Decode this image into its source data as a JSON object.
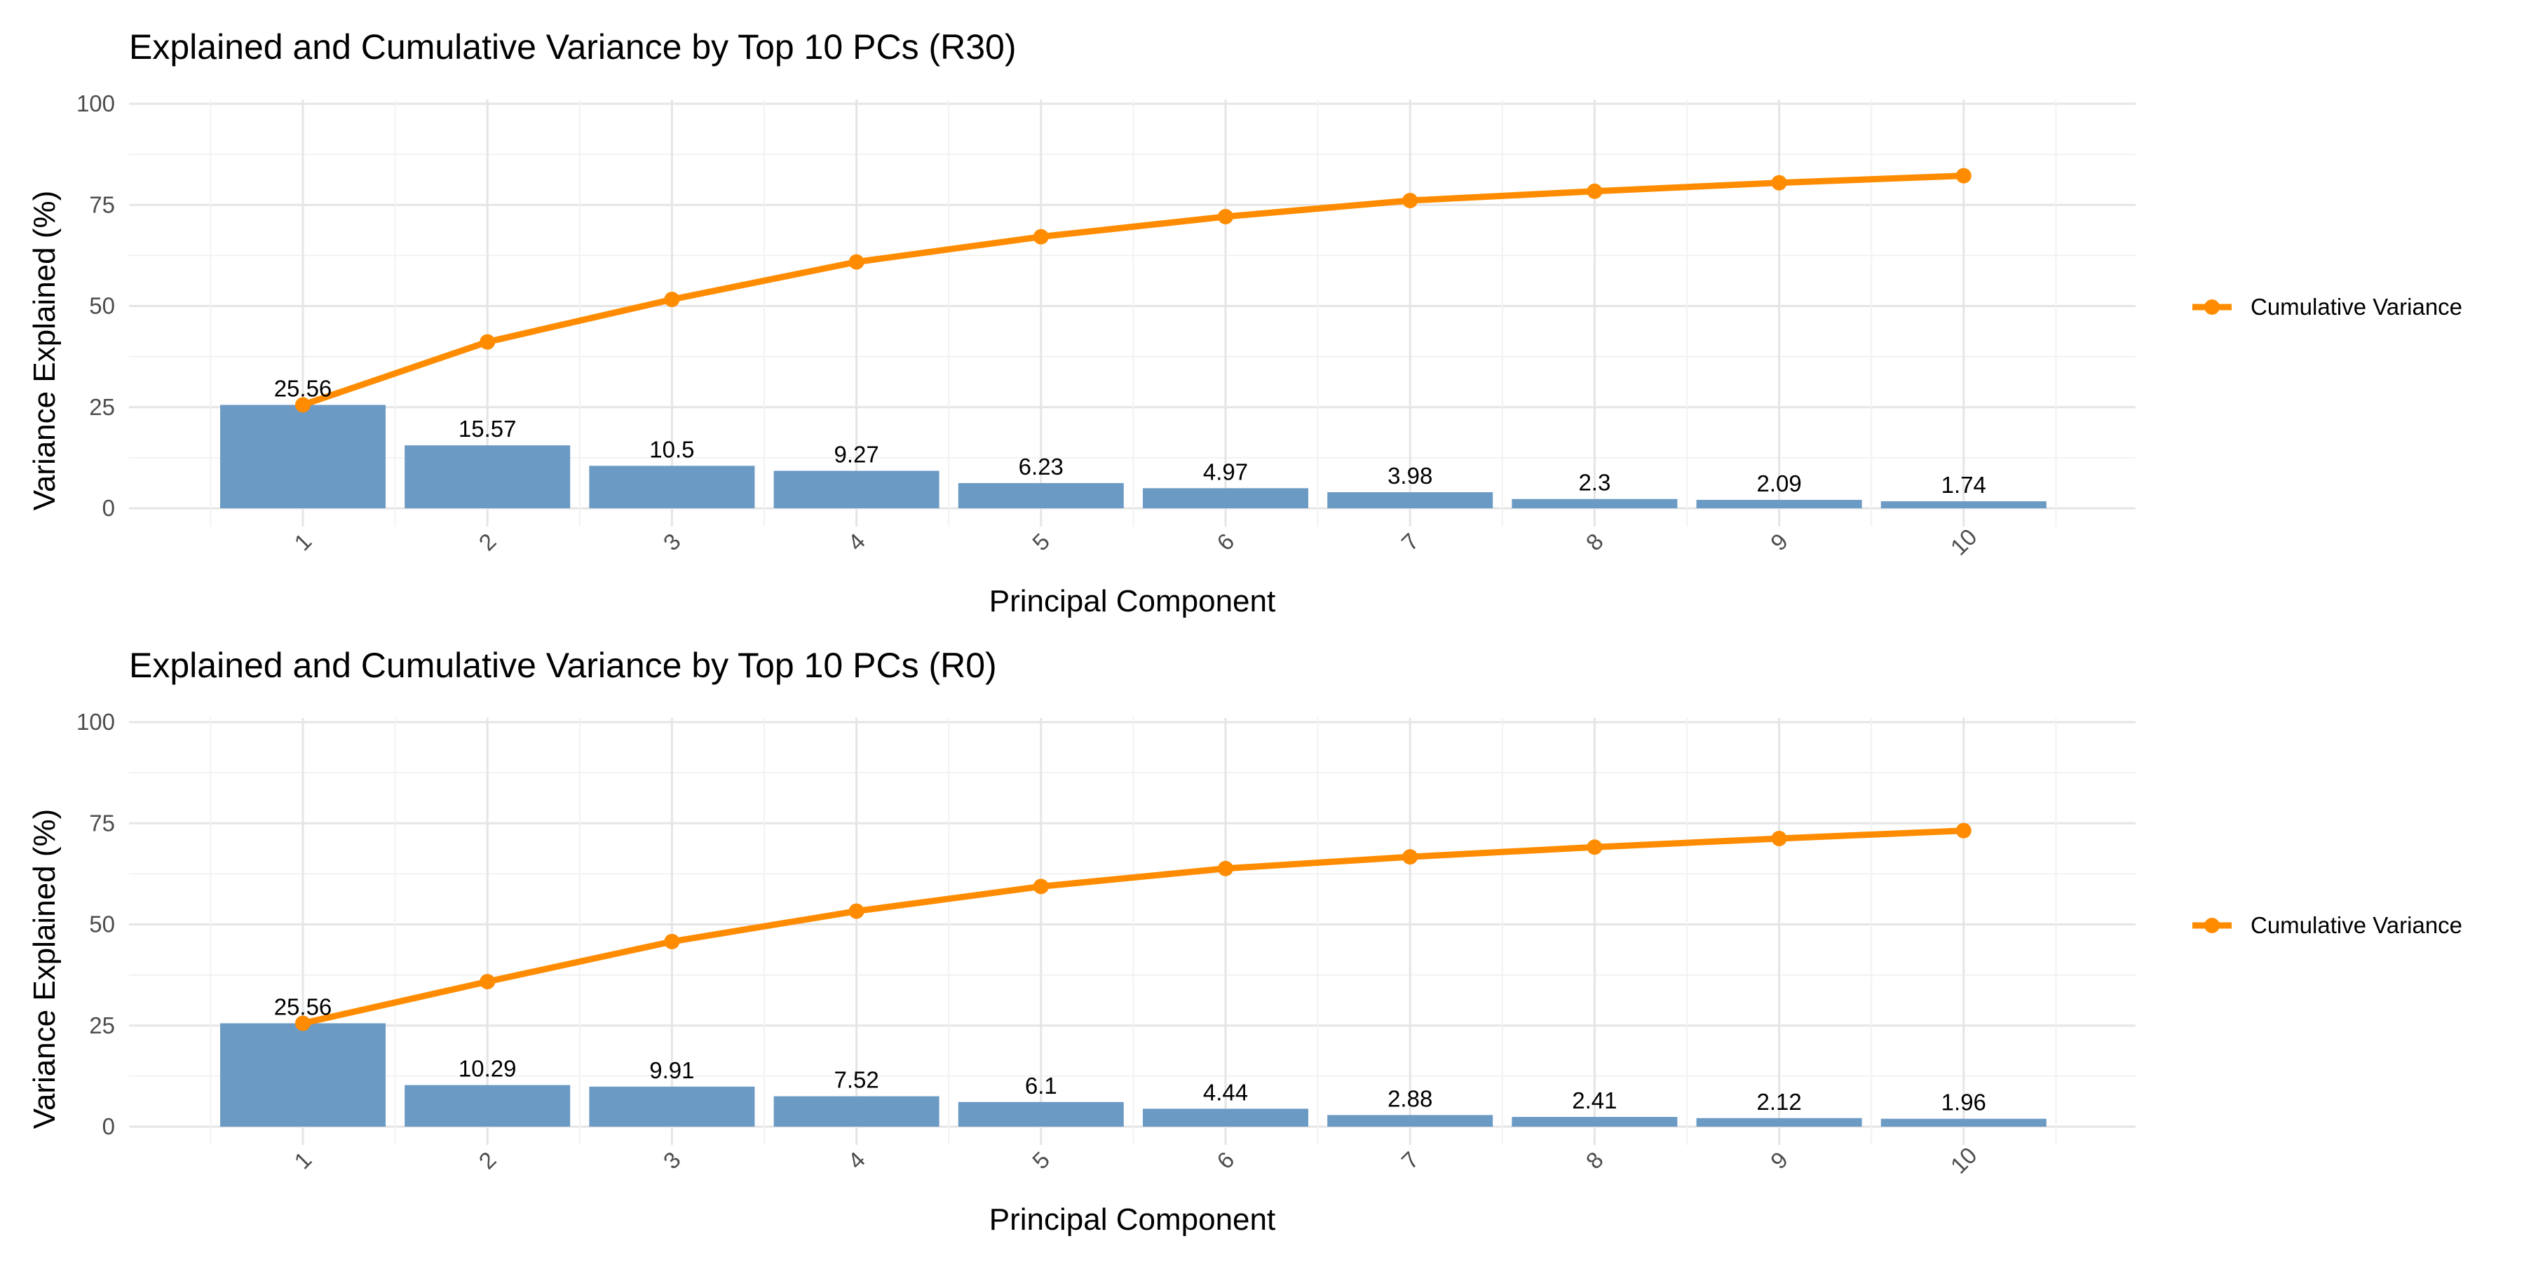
{
  "colors": {
    "bar": "#6b9ac4",
    "line": "#ff8c00",
    "grid_major": "#e5e5e5",
    "grid_minor": "#f2f2f2"
  },
  "chart_data": [
    {
      "type": "bar",
      "title": "Explained and Cumulative Variance by Top 10 PCs (R30)",
      "xlabel": "Principal Component",
      "ylabel": "Variance Explained (%)",
      "ylim": [
        0,
        100
      ],
      "yticks": [
        "0",
        "25",
        "50",
        "75",
        "100"
      ],
      "categories": [
        "1",
        "2",
        "3",
        "4",
        "5",
        "6",
        "7",
        "8",
        "9",
        "10"
      ],
      "series": [
        {
          "type": "bar",
          "values": [
            25.56,
            15.57,
            10.5,
            9.27,
            6.23,
            4.97,
            3.98,
            2.3,
            2.09,
            1.74
          ],
          "labels": [
            "25.56",
            "15.57",
            "10.5",
            "9.27",
            "6.23",
            "4.97",
            "3.98",
            "2.3",
            "2.09",
            "1.74"
          ]
        },
        {
          "type": "line",
          "name": "Cumulative Variance",
          "values": [
            25.56,
            41.13,
            51.63,
            60.9,
            67.13,
            72.1,
            76.08,
            78.38,
            80.47,
            82.21
          ]
        }
      ],
      "legend": {
        "position": "right",
        "label": "Cumulative Variance"
      },
      "grid": true
    },
    {
      "type": "bar",
      "title": "Explained and Cumulative Variance by Top 10 PCs (R0)",
      "xlabel": "Principal Component",
      "ylabel": "Variance Explained (%)",
      "ylim": [
        0,
        100
      ],
      "yticks": [
        "0",
        "25",
        "50",
        "75",
        "100"
      ],
      "categories": [
        "1",
        "2",
        "3",
        "4",
        "5",
        "6",
        "7",
        "8",
        "9",
        "10"
      ],
      "series": [
        {
          "type": "bar",
          "values": [
            25.56,
            10.29,
            9.91,
            7.52,
            6.1,
            4.44,
            2.88,
            2.41,
            2.12,
            1.96
          ],
          "labels": [
            "25.56",
            "10.29",
            "9.91",
            "7.52",
            "6.1",
            "4.44",
            "2.88",
            "2.41",
            "2.12",
            "1.96"
          ]
        },
        {
          "type": "line",
          "name": "Cumulative Variance",
          "values": [
            25.56,
            35.85,
            45.76,
            53.28,
            59.38,
            63.82,
            66.7,
            69.11,
            71.23,
            73.19
          ]
        }
      ],
      "legend": {
        "position": "right",
        "label": "Cumulative Variance"
      },
      "grid": true
    }
  ]
}
